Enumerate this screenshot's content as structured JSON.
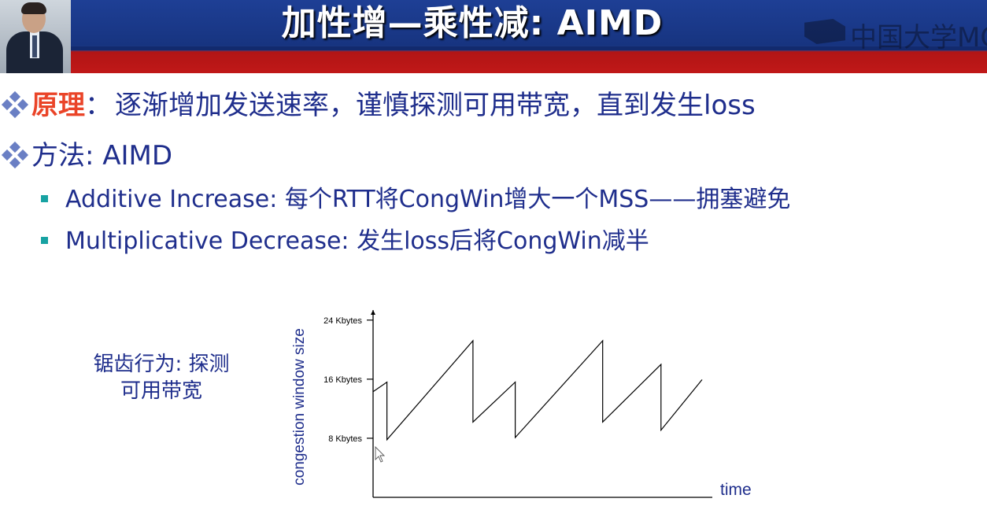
{
  "header": {
    "title": "加性增—乘性减: AIMD",
    "logo_text": "中国大学MO"
  },
  "bullets": [
    {
      "keyword": "原理",
      "separator": "：",
      "text": "逐渐增加发送速率，谨慎探测可用带宽，直到发生loss"
    },
    {
      "text": "方法: AIMD"
    }
  ],
  "sub_bullets": [
    "Additive Increase: 每个RTT将CongWin增大一个MSS——拥塞避免",
    "Multiplicative Decrease: 发生loss后将CongWin减半"
  ],
  "caption": [
    "锯齿行为: 探测",
    "可用带宽"
  ],
  "colors": {
    "header_blue": "#1e3f95",
    "header_red": "#c01818",
    "text_blue": "#1f2e8c",
    "keyword_red": "#ea4428",
    "bullet_teal": "#17a2a2"
  },
  "chart_data": {
    "type": "line",
    "ylabel": "congestion window size",
    "xlabel": "time",
    "yticks": [
      {
        "value": 24,
        "label": "24 Kbytes"
      },
      {
        "value": 16,
        "label": "16 Kbytes"
      },
      {
        "value": 8,
        "label": "8 Kbytes"
      }
    ],
    "ylim": [
      0,
      26
    ],
    "xlim": [
      0,
      46
    ],
    "series": [
      {
        "points": [
          [
            0,
            14.3
          ],
          [
            1.9,
            15.6
          ],
          [
            1.9,
            7.8
          ],
          [
            13.7,
            21.2
          ],
          [
            13.7,
            10.2
          ],
          [
            19.5,
            15.6
          ],
          [
            19.5,
            8.1
          ],
          [
            31.5,
            21.2
          ],
          [
            31.5,
            10.2
          ],
          [
            39.5,
            18.0
          ],
          [
            39.5,
            9.1
          ],
          [
            45.1,
            15.9
          ]
        ]
      }
    ]
  }
}
